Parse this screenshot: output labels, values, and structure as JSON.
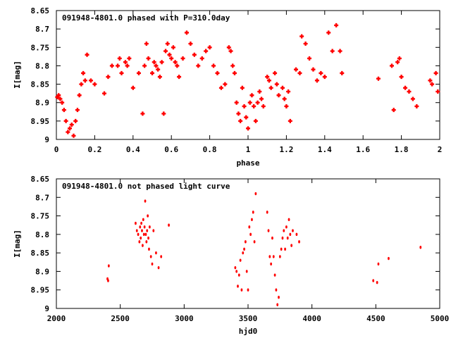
{
  "chart_data": [
    {
      "type": "scatter",
      "title": "091948-4801.0 phased with P=310.0day",
      "xlabel": "phase",
      "ylabel": "I[mag]",
      "xlim": [
        0,
        2
      ],
      "ylim": [
        9,
        8.65
      ],
      "y_inverted": true,
      "xticks": [
        "0",
        "0.2",
        "0.4",
        "0.6",
        "0.8",
        "1",
        "1.2",
        "1.4",
        "1.6",
        "1.8",
        "2"
      ],
      "yticks": [
        "8.65",
        "8.7",
        "8.75",
        "8.8",
        "8.85",
        "8.9",
        "8.95",
        "9"
      ],
      "marker_color": "#ff0000",
      "grid": false,
      "x": [
        0.005,
        0.012,
        0.02,
        0.03,
        0.04,
        0.05,
        0.06,
        0.07,
        0.08,
        0.09,
        0.1,
        0.11,
        0.12,
        0.13,
        0.14,
        0.15,
        0.16,
        0.18,
        0.2,
        0.25,
        0.27,
        0.29,
        0.32,
        0.33,
        0.34,
        0.36,
        0.37,
        0.38,
        0.4,
        0.43,
        0.45,
        0.46,
        0.47,
        0.48,
        0.5,
        0.51,
        0.52,
        0.53,
        0.54,
        0.55,
        0.56,
        0.57,
        0.58,
        0.59,
        0.6,
        0.61,
        0.62,
        0.63,
        0.64,
        0.66,
        0.68,
        0.7,
        0.72,
        0.74,
        0.76,
        0.78,
        0.8,
        0.82,
        0.84,
        0.86,
        0.88,
        0.9,
        0.91,
        0.92,
        0.93,
        0.94,
        0.95,
        0.96,
        0.97,
        0.98,
        0.99,
        1.0,
        1.01,
        1.02,
        1.03,
        1.04,
        1.05,
        1.06,
        1.07,
        1.08,
        1.1,
        1.11,
        1.12,
        1.14,
        1.15,
        1.16,
        1.18,
        1.19,
        1.2,
        1.21,
        1.22,
        1.25,
        1.27,
        1.28,
        1.3,
        1.32,
        1.34,
        1.36,
        1.38,
        1.4,
        1.42,
        1.44,
        1.46,
        1.48,
        1.49,
        1.68,
        1.75,
        1.76,
        1.78,
        1.79,
        1.8,
        1.82,
        1.84,
        1.86,
        1.88,
        1.95,
        1.96,
        1.98,
        1.99
      ],
      "y": [
        8.885,
        8.88,
        8.89,
        8.9,
        8.92,
        8.95,
        8.98,
        8.97,
        8.96,
        8.99,
        8.95,
        8.92,
        8.88,
        8.85,
        8.82,
        8.84,
        8.77,
        8.84,
        8.85,
        8.875,
        8.83,
        8.8,
        8.8,
        8.78,
        8.82,
        8.79,
        8.8,
        8.78,
        8.86,
        8.82,
        8.93,
        8.8,
        8.74,
        8.78,
        8.82,
        8.79,
        8.8,
        8.81,
        8.83,
        8.79,
        8.93,
        8.76,
        8.74,
        8.77,
        8.78,
        8.75,
        8.79,
        8.8,
        8.83,
        8.78,
        8.71,
        8.74,
        8.77,
        8.8,
        8.78,
        8.76,
        8.75,
        8.8,
        8.82,
        8.86,
        8.85,
        8.75,
        8.76,
        8.8,
        8.82,
        8.9,
        8.93,
        8.95,
        8.86,
        8.91,
        8.94,
        8.97,
        8.9,
        8.88,
        8.91,
        8.95,
        8.9,
        8.87,
        8.89,
        8.91,
        8.83,
        8.84,
        8.86,
        8.82,
        8.85,
        8.88,
        8.86,
        8.89,
        8.91,
        8.87,
        8.95,
        8.81,
        8.82,
        8.72,
        8.74,
        8.78,
        8.81,
        8.84,
        8.82,
        8.83,
        8.71,
        8.76,
        8.69,
        8.76,
        8.82,
        8.835,
        8.8,
        8.92,
        8.79,
        8.78,
        8.83,
        8.86,
        8.87,
        8.89,
        8.91,
        8.84,
        8.85,
        8.82,
        8.87
      ],
      "x_label_key": "phase"
    },
    {
      "type": "scatter",
      "title": "091948-4801.0 not phased light curve",
      "xlabel": "hjd0",
      "ylabel": "I[mag]",
      "xlim": [
        2000,
        5000
      ],
      "ylim": [
        9,
        8.65
      ],
      "y_inverted": true,
      "xticks": [
        "2000",
        "2500",
        "3000",
        "3500",
        "4000",
        "4500",
        "5000"
      ],
      "yticks": [
        "8.65",
        "8.7",
        "8.75",
        "8.8",
        "8.85",
        "8.9",
        "8.95",
        "9"
      ],
      "marker_color": "#ff0000",
      "grid": false,
      "x": [
        2400,
        2405,
        2410,
        2620,
        2630,
        2640,
        2650,
        2655,
        2660,
        2665,
        2670,
        2675,
        2680,
        2685,
        2690,
        2695,
        2700,
        2705,
        2710,
        2715,
        2720,
        2725,
        2730,
        2740,
        2750,
        2760,
        2780,
        2800,
        2820,
        2880,
        3400,
        3410,
        3420,
        3430,
        3440,
        3450,
        3460,
        3470,
        3480,
        3490,
        3500,
        3510,
        3520,
        3530,
        3540,
        3550,
        3560,
        3650,
        3660,
        3670,
        3680,
        3690,
        3700,
        3710,
        3720,
        3730,
        3740,
        3750,
        3760,
        3770,
        3780,
        3790,
        3800,
        3810,
        3820,
        3830,
        3840,
        3850,
        3880,
        3900,
        4480,
        4510,
        4520,
        4600,
        4850
      ],
      "y": [
        8.92,
        8.925,
        8.885,
        8.77,
        8.79,
        8.8,
        8.82,
        8.78,
        8.81,
        8.77,
        8.79,
        8.83,
        8.76,
        8.8,
        8.78,
        8.71,
        8.8,
        8.82,
        8.79,
        8.75,
        8.81,
        8.84,
        8.78,
        8.86,
        8.88,
        8.79,
        8.85,
        8.89,
        8.86,
        8.775,
        8.89,
        8.9,
        8.94,
        8.91,
        8.87,
        8.95,
        8.85,
        8.84,
        8.82,
        8.9,
        8.95,
        8.78,
        8.8,
        8.76,
        8.74,
        8.82,
        8.69,
        8.74,
        8.79,
        8.86,
        8.88,
        8.81,
        8.86,
        8.91,
        8.95,
        8.99,
        8.97,
        8.86,
        8.84,
        8.81,
        8.79,
        8.84,
        8.78,
        8.81,
        8.76,
        8.8,
        8.83,
        8.79,
        8.8,
        8.82,
        8.925,
        8.93,
        8.88,
        8.865,
        8.835
      ]
    }
  ]
}
